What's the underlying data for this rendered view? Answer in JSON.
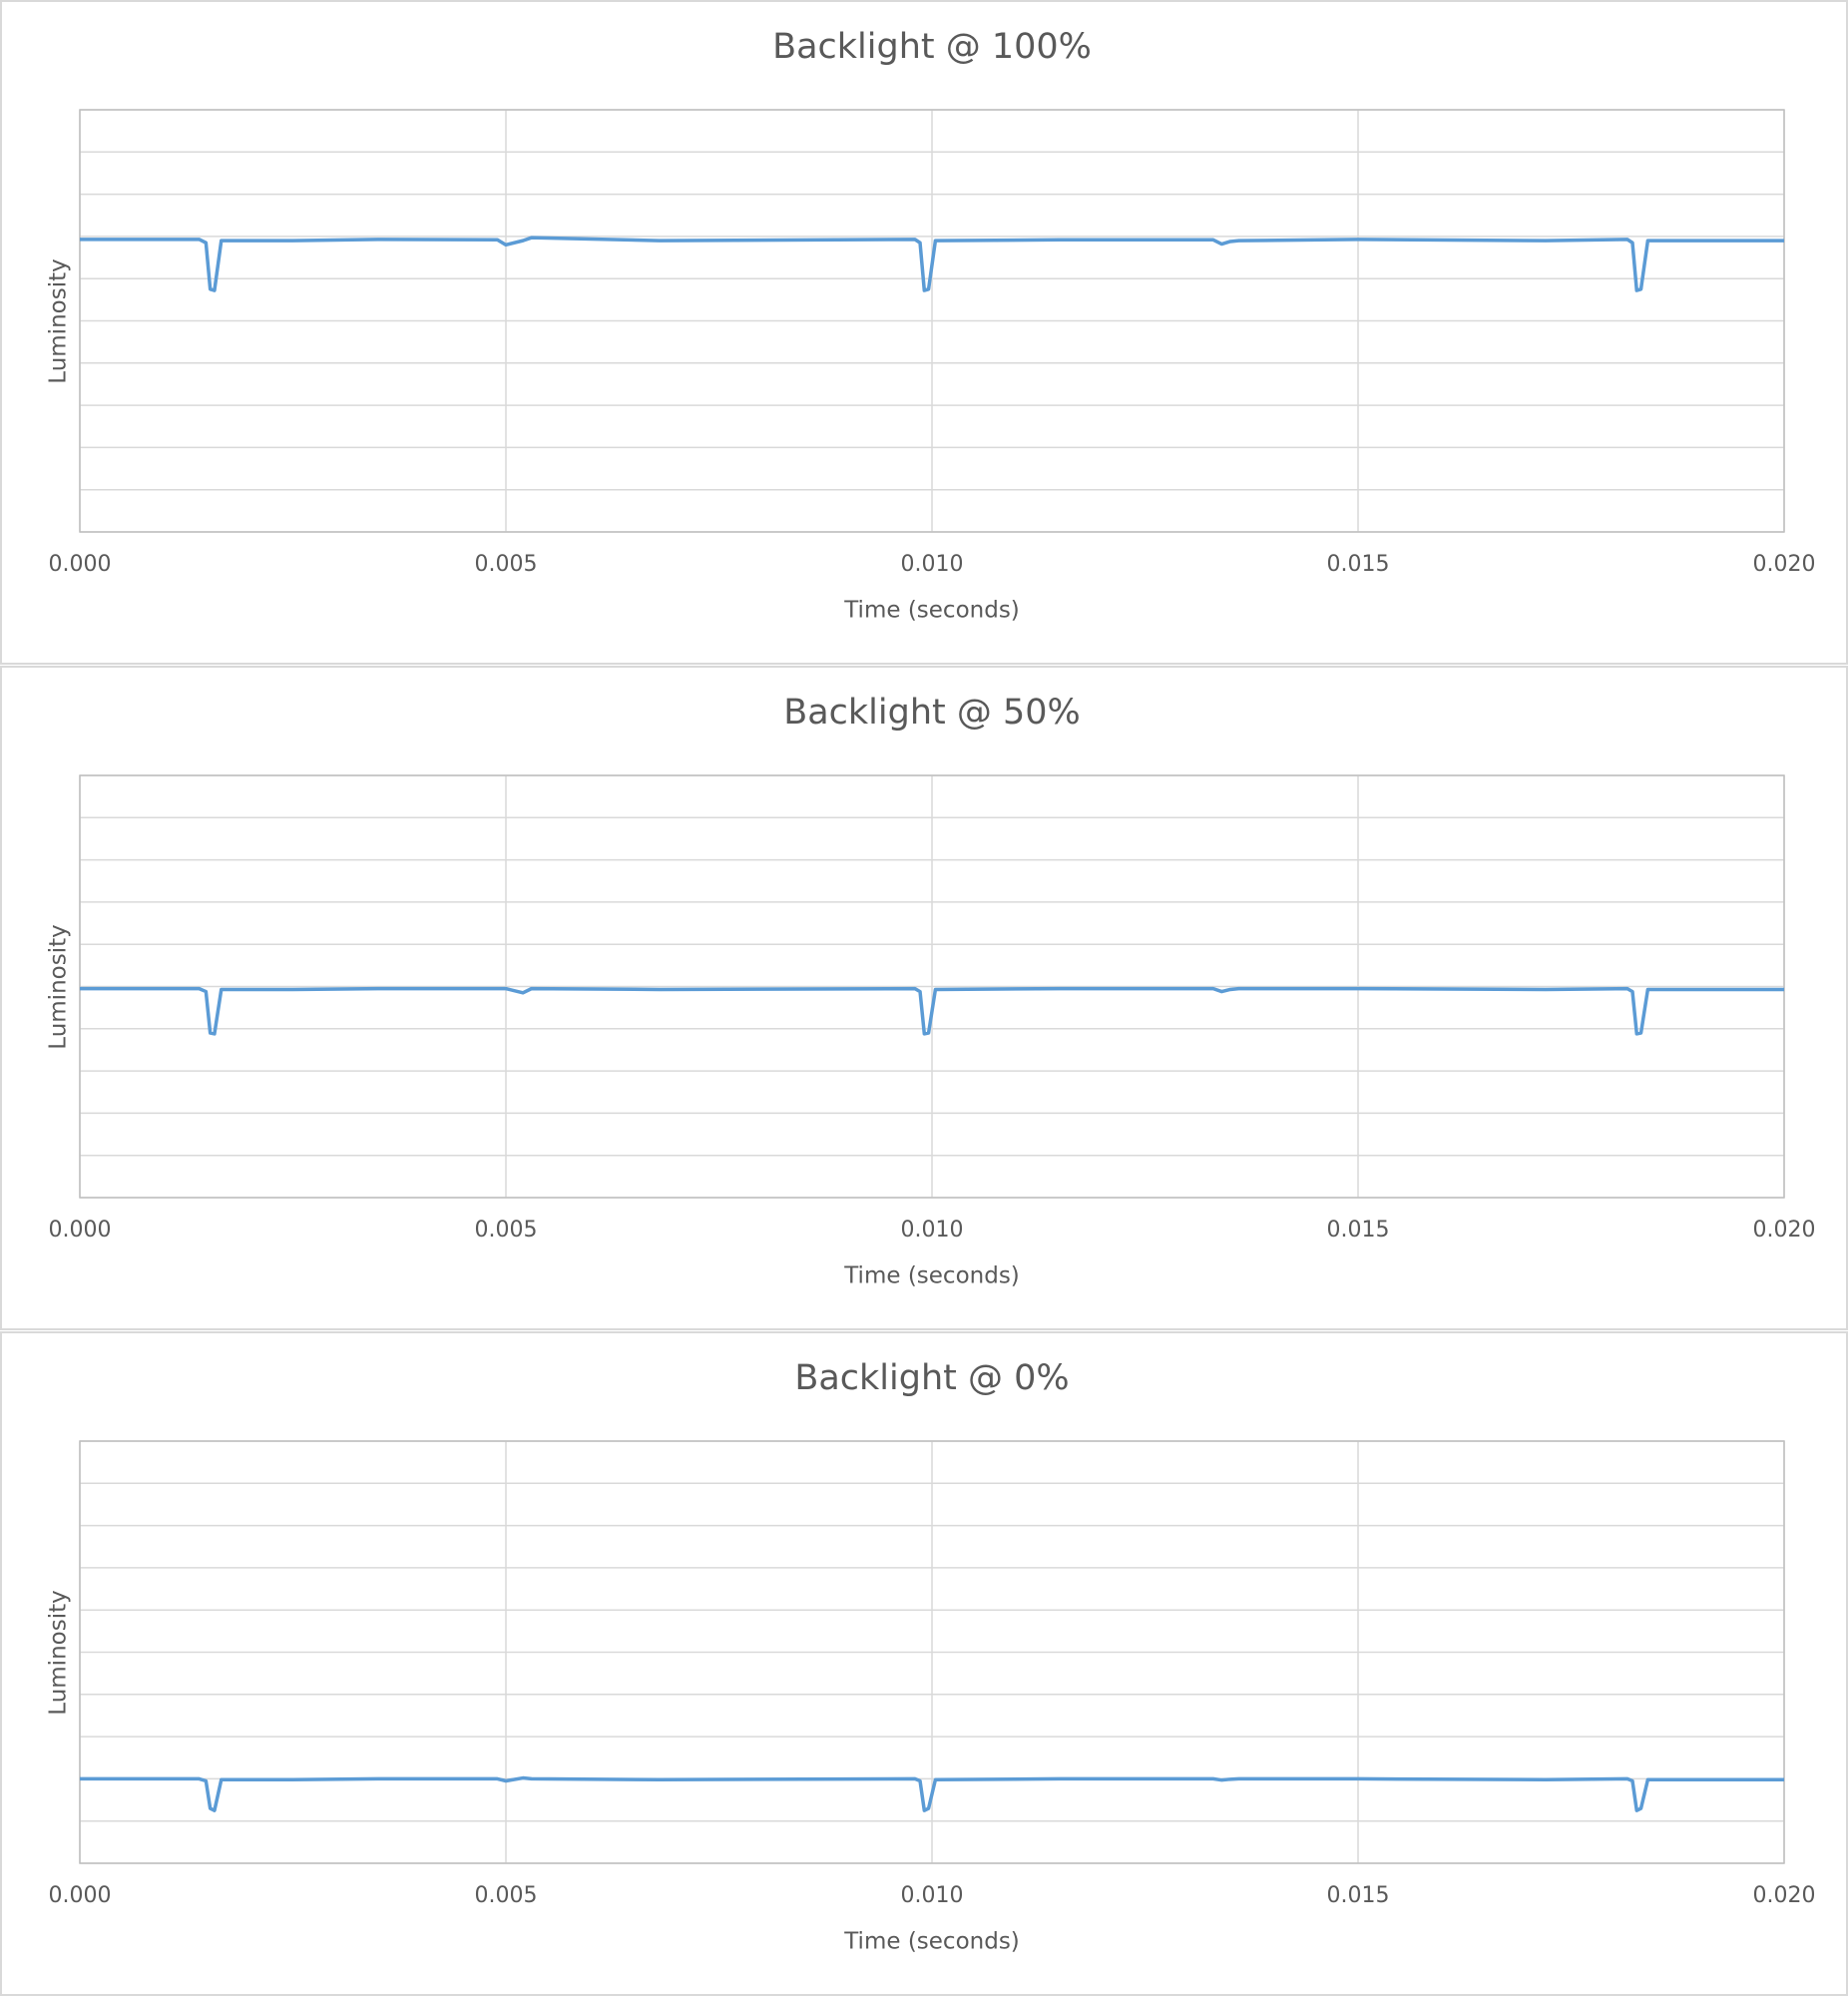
{
  "chart_data": [
    {
      "type": "line",
      "title": "Backlight @ 100%",
      "x_label": "Time (seconds)",
      "y_label": "Luminosity",
      "x": [
        0,
        0.0014,
        0.00148,
        0.00153,
        0.00158,
        0.00166,
        0.0025,
        0.0035,
        0.0049,
        0.005,
        0.0052,
        0.0053,
        0.0068,
        0.0098,
        0.00986,
        0.00991,
        0.00996,
        0.01004,
        0.0115,
        0.0133,
        0.0134,
        0.0135,
        0.0136,
        0.015,
        0.0172,
        0.01816,
        0.01822,
        0.01827,
        0.01832,
        0.0184,
        0.02
      ],
      "values": [
        6.93,
        6.93,
        6.85,
        5.75,
        5.72,
        6.9,
        6.9,
        6.93,
        6.92,
        6.8,
        6.9,
        6.97,
        6.9,
        6.93,
        6.85,
        5.72,
        5.75,
        6.9,
        6.92,
        6.92,
        6.82,
        6.88,
        6.9,
        6.93,
        6.9,
        6.93,
        6.85,
        5.72,
        5.75,
        6.9,
        6.9
      ],
      "color": "#5b9bd5",
      "xlim": [
        0,
        0.02
      ],
      "xticks": [
        {
          "value": 0,
          "label": "0.000"
        },
        {
          "value": 0.005,
          "label": "0.005"
        },
        {
          "value": 0.01,
          "label": "0.010"
        },
        {
          "value": 0.015,
          "label": "0.015"
        },
        {
          "value": 0.02,
          "label": "0.020"
        }
      ],
      "ylim": [
        0,
        10
      ],
      "yticks": [
        0,
        1,
        2,
        3,
        4,
        5,
        6,
        7,
        8,
        9,
        10
      ],
      "ytick_labels": false,
      "grid": true
    },
    {
      "type": "line",
      "title": "Backlight @ 50%",
      "x_label": "Time (seconds)",
      "y_label": "Luminosity",
      "x": [
        0,
        0.0014,
        0.00148,
        0.00153,
        0.00158,
        0.00166,
        0.0025,
        0.0035,
        0.0049,
        0.005,
        0.0052,
        0.0053,
        0.0068,
        0.0098,
        0.00986,
        0.00991,
        0.00996,
        0.01004,
        0.0115,
        0.0133,
        0.0134,
        0.0135,
        0.0136,
        0.015,
        0.0172,
        0.01816,
        0.01822,
        0.01827,
        0.01832,
        0.0184,
        0.02
      ],
      "values": [
        4.95,
        4.95,
        4.88,
        3.9,
        3.88,
        4.93,
        4.93,
        4.95,
        4.95,
        4.95,
        4.85,
        4.95,
        4.93,
        4.95,
        4.88,
        3.88,
        3.9,
        4.93,
        4.95,
        4.95,
        4.88,
        4.93,
        4.95,
        4.95,
        4.93,
        4.95,
        4.88,
        3.88,
        3.9,
        4.93,
        4.93
      ],
      "color": "#5b9bd5",
      "xlim": [
        0,
        0.02
      ],
      "xticks": [
        {
          "value": 0,
          "label": "0.000"
        },
        {
          "value": 0.005,
          "label": "0.005"
        },
        {
          "value": 0.01,
          "label": "0.010"
        },
        {
          "value": 0.015,
          "label": "0.015"
        },
        {
          "value": 0.02,
          "label": "0.020"
        }
      ],
      "ylim": [
        0,
        10
      ],
      "yticks": [
        0,
        1,
        2,
        3,
        4,
        5,
        6,
        7,
        8,
        9,
        10
      ],
      "ytick_labels": false,
      "grid": true
    },
    {
      "type": "line",
      "title": "Backlight @ 0%",
      "x_label": "Time (seconds)",
      "y_label": "Luminosity",
      "x": [
        0,
        0.0014,
        0.00148,
        0.00153,
        0.00158,
        0.00166,
        0.0025,
        0.0035,
        0.0049,
        0.005,
        0.0052,
        0.0053,
        0.0068,
        0.0098,
        0.00986,
        0.00991,
        0.00996,
        0.01004,
        0.0115,
        0.0133,
        0.0134,
        0.0135,
        0.0136,
        0.015,
        0.0172,
        0.01816,
        0.01822,
        0.01827,
        0.01832,
        0.0184,
        0.02
      ],
      "values": [
        2.0,
        2.0,
        1.95,
        1.3,
        1.25,
        1.98,
        1.98,
        2.0,
        2.0,
        1.95,
        2.02,
        2.0,
        1.98,
        2.0,
        1.95,
        1.25,
        1.3,
        1.98,
        2.0,
        2.0,
        1.97,
        1.99,
        2.0,
        2.0,
        1.98,
        2.0,
        1.95,
        1.25,
        1.3,
        1.98,
        1.98
      ],
      "color": "#5b9bd5",
      "xlim": [
        0,
        0.02
      ],
      "xticks": [
        {
          "value": 0,
          "label": "0.000"
        },
        {
          "value": 0.005,
          "label": "0.005"
        },
        {
          "value": 0.01,
          "label": "0.010"
        },
        {
          "value": 0.015,
          "label": "0.015"
        },
        {
          "value": 0.02,
          "label": "0.020"
        }
      ],
      "ylim": [
        0,
        10
      ],
      "yticks": [
        0,
        1,
        2,
        3,
        4,
        5,
        6,
        7,
        8,
        9,
        10
      ],
      "ytick_labels": false,
      "grid": true
    }
  ]
}
